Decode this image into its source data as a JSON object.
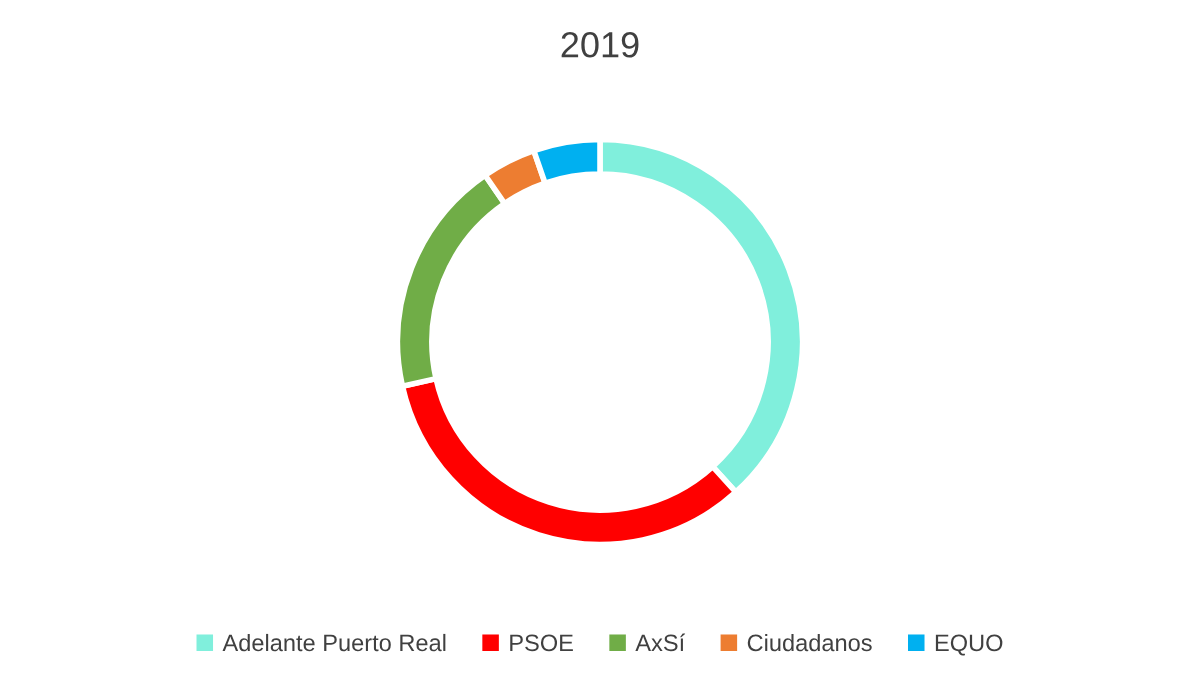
{
  "chart_data": {
    "type": "donut",
    "title": "2019",
    "categories": [
      "Adelante Puerto Real",
      "PSOE",
      "AxSí",
      "Ciudadanos",
      "EQUO"
    ],
    "values": [
      38.3,
      33.2,
      18.9,
      4.3,
      5.3
    ],
    "colors": [
      "#80efdc",
      "#ff0000",
      "#70ad47",
      "#ed7d31",
      "#00b0f0"
    ],
    "legend": "bottom"
  }
}
